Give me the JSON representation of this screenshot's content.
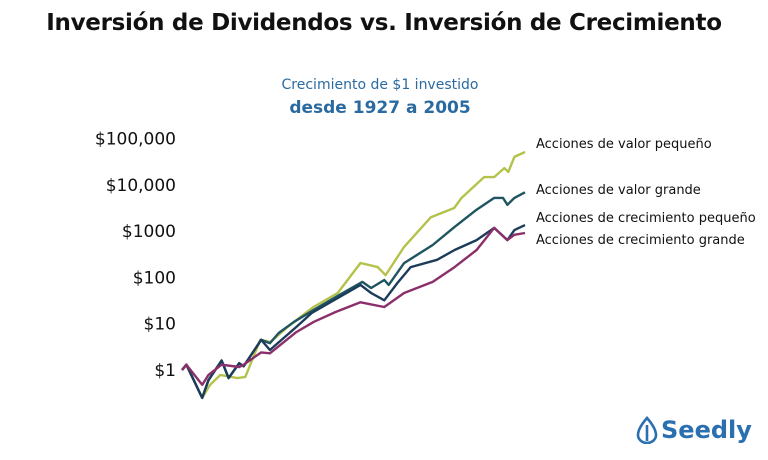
{
  "chart_data": {
    "type": "line",
    "title": "Inversión de Dividendos vs. Inversión de Crecimiento",
    "subtitle_line1": "Crecimiento de $1 investido",
    "subtitle_line2": "desde 1927 a 2005",
    "xlabel": "",
    "ylabel": "",
    "y_scale": "log",
    "ylim": [
      0.2,
      100000
    ],
    "xlim": [
      1927,
      2005
    ],
    "y_ticks": [
      1,
      10,
      100,
      1000,
      10000,
      100000
    ],
    "y_tick_labels": [
      "$1",
      "$10",
      "$100",
      "$1000",
      "$10,000",
      "$100,000"
    ],
    "grid": false,
    "legend": "right (inline labels at line ends)",
    "series": [
      {
        "name": "Acciones de valor pequeño",
        "color": "#b5c24a",
        "x": [
          1927,
          1928,
          1931.6,
          1933.4,
          1935.7,
          1939.6,
          1941.4,
          1944.8,
          1947.1,
          1951,
          1956.9,
          1962.4,
          1967.6,
          1971.5,
          1973.3,
          1977.5,
          1983.6,
          1988.9,
          1990.5,
          1995.7,
          1998,
          2000.3,
          2001.2,
          2002.6,
          2005
        ],
        "values": [
          1,
          1.3,
          0.25,
          0.48,
          0.78,
          0.67,
          0.71,
          4.5,
          4.0,
          8.5,
          23,
          46,
          205,
          167,
          112,
          455,
          2000,
          3160,
          5100,
          14700,
          14700,
          23000,
          19000,
          40000,
          51000
        ]
      },
      {
        "name": "Acciones de valor grande",
        "color": "#1f5561",
        "x": [
          1927,
          1928,
          1931.6,
          1933,
          1936,
          1937.6,
          1940,
          1941,
          1945,
          1947,
          1949,
          1952.5,
          1957,
          1962,
          1968,
          1970,
          1973,
          1974,
          1977.5,
          1984,
          1989,
          1994,
          1998,
          2000,
          2001,
          2002.6,
          2005
        ],
        "values": [
          1,
          1.3,
          0.25,
          0.6,
          1.6,
          0.67,
          1.4,
          1.2,
          4.5,
          3.8,
          6.3,
          11,
          20,
          38,
          80,
          59,
          88,
          69,
          204,
          500,
          1230,
          2900,
          5200,
          5200,
          3700,
          5200,
          6900
        ]
      },
      {
        "name": "Acciones de crecimiento pequeño",
        "color": "#1d3c5a",
        "x": [
          1927,
          1928,
          1931.6,
          1933,
          1936,
          1937.6,
          1940,
          1941,
          1945,
          1947,
          1953,
          1956.5,
          1967.6,
          1970,
          1973,
          1976,
          1979,
          1985,
          1989,
          1994,
          1998,
          2001,
          2002.6,
          2005
        ],
        "values": [
          1,
          1.3,
          0.25,
          0.6,
          1.6,
          0.67,
          1.4,
          1.2,
          4.5,
          2.7,
          8.5,
          17,
          69,
          46,
          32,
          76,
          167,
          240,
          390,
          640,
          1170,
          640,
          1050,
          1350
        ]
      },
      {
        "name": "Acciones de crecimiento grande",
        "color": "#8b2f6b",
        "x": [
          1927,
          1928,
          1931.6,
          1933,
          1936,
          1940,
          1941,
          1945,
          1947,
          1953,
          1957,
          1962,
          1967.6,
          1973,
          1977.5,
          1984,
          1989,
          1994,
          1998,
          2001,
          2002.6,
          2005
        ],
        "values": [
          1,
          1.3,
          0.48,
          0.78,
          1.3,
          1.16,
          1.3,
          2.4,
          2.3,
          6.6,
          11,
          18,
          29,
          23,
          46,
          80,
          167,
          390,
          1170,
          640,
          830,
          910
        ]
      }
    ]
  },
  "logo": {
    "text": "Seedly",
    "color": "#2a6fb0"
  }
}
